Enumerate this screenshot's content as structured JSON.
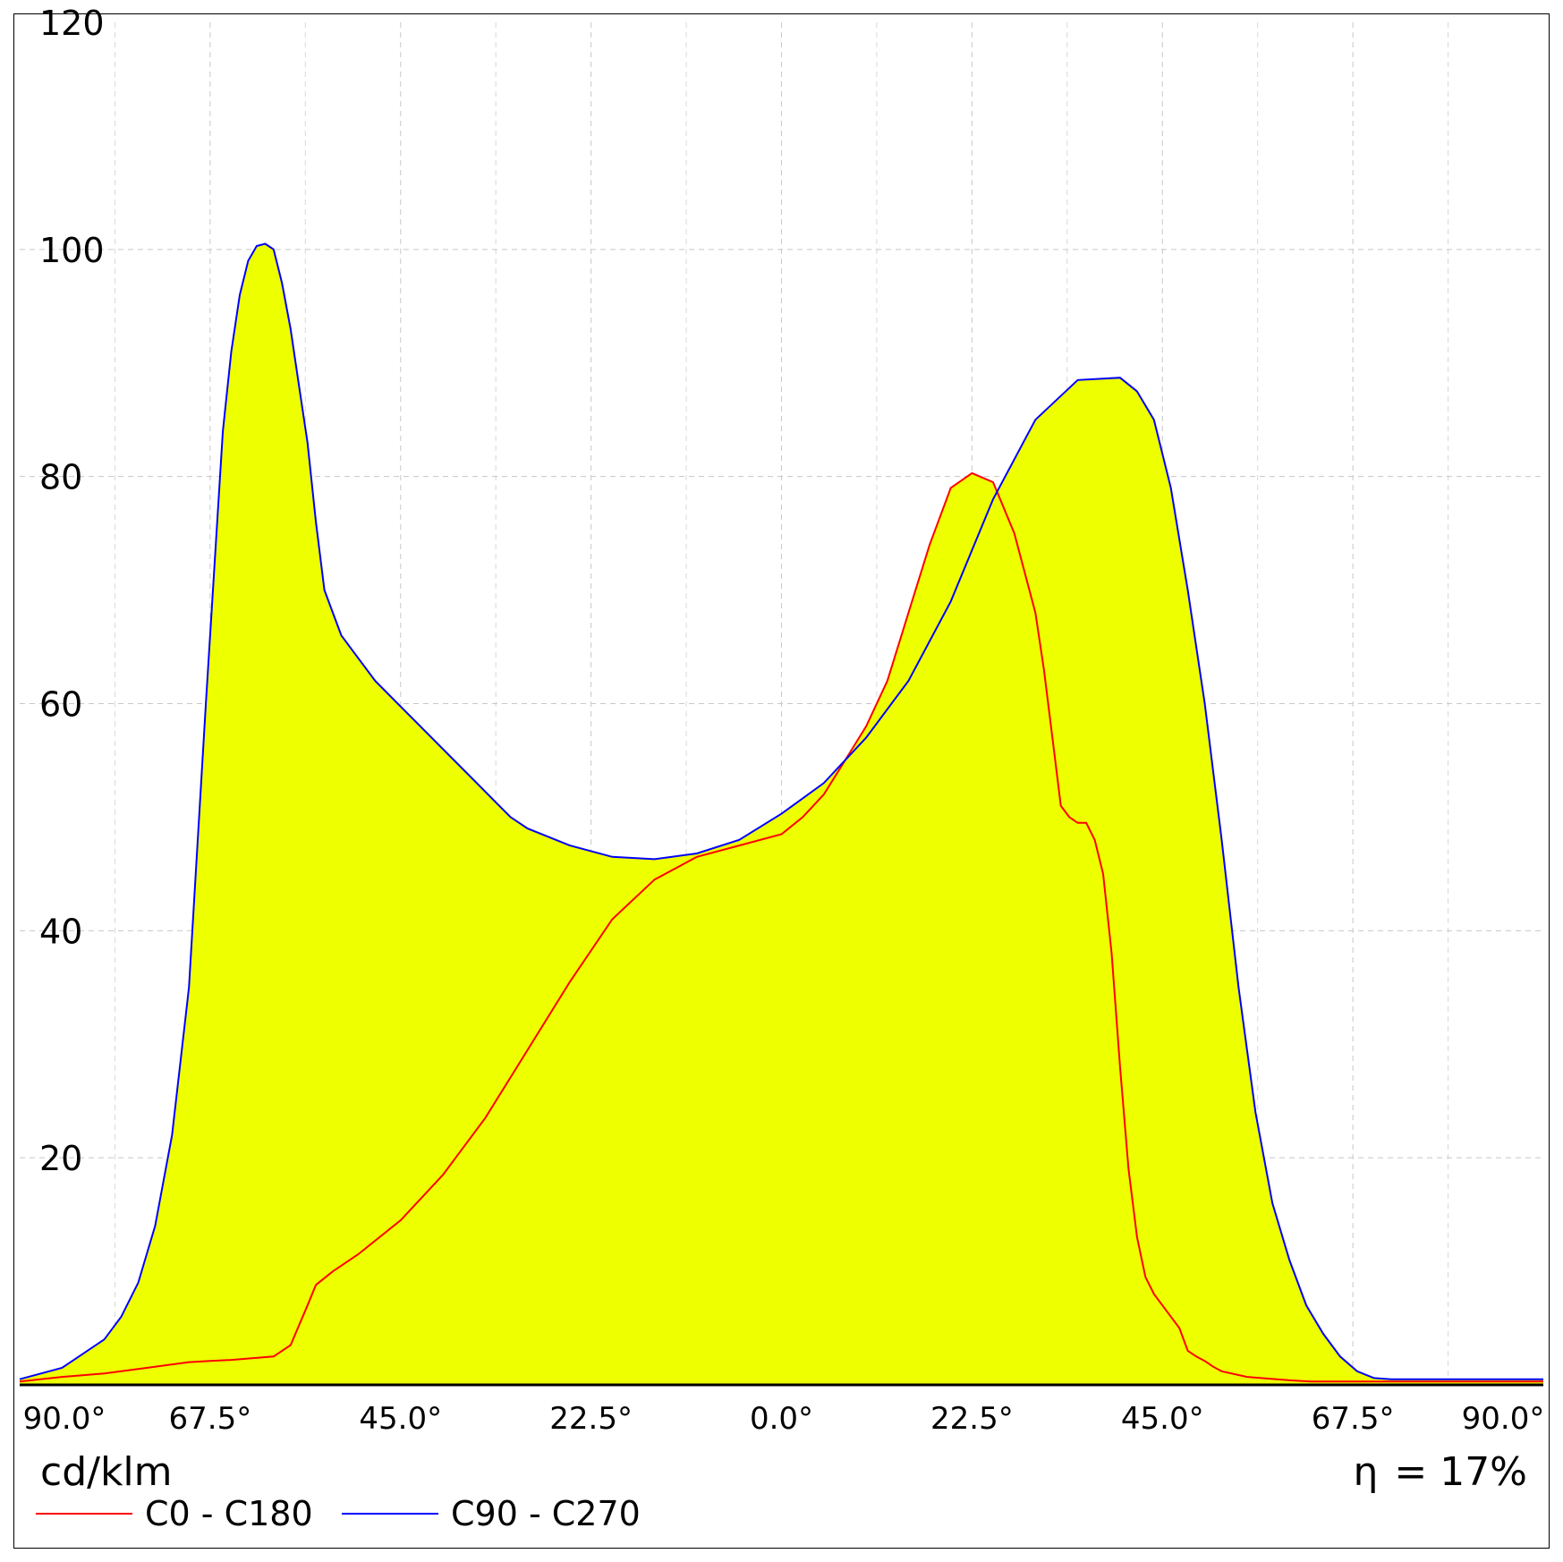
{
  "chart_data": {
    "type": "area",
    "x_tick_labels": [
      "90.0°",
      "67.5°",
      "45.0°",
      "22.5°",
      "0.0°",
      "22.5°",
      "45.0°",
      "67.5°",
      "90.0°"
    ],
    "y_tick_labels": [
      "20",
      "40",
      "60",
      "80",
      "100",
      "120"
    ],
    "xlim": [
      -90,
      90
    ],
    "ylim": [
      0,
      120
    ],
    "grid": true,
    "unit_label": "cd/klm",
    "efficiency_symbol": "η",
    "efficiency_value": "= 17%",
    "fill_color": "#eeff00",
    "series": [
      {
        "name": "C0 - C180",
        "color": "#ff0000",
        "x": [
          -90,
          -85,
          -80,
          -75,
          -70,
          -67.5,
          -65,
          -60,
          -58,
          -56,
          -55,
          -53,
          -50,
          -45,
          -40,
          -35,
          -30,
          -25,
          -20,
          -15,
          -10,
          -5,
          0,
          2.5,
          5,
          7.5,
          10,
          12.5,
          15,
          17.5,
          20,
          22.5,
          25,
          27.5,
          30,
          31,
          32,
          33,
          34,
          35,
          36,
          37,
          38,
          39,
          40,
          41,
          42,
          43,
          44,
          45,
          46,
          47,
          48,
          49,
          50,
          51,
          52,
          55,
          60,
          62.5,
          65,
          70,
          75,
          80,
          85,
          90
        ],
        "y": [
          0.3,
          0.7,
          1.0,
          1.5,
          2.0,
          2.1,
          2.2,
          2.5,
          3.5,
          7,
          8.8,
          10.0,
          11.5,
          14.5,
          18.5,
          23.5,
          29.5,
          35.5,
          41,
          44.5,
          46.5,
          47.5,
          48.5,
          50,
          52,
          55,
          58,
          62,
          68,
          74,
          79,
          80.3,
          79.5,
          75,
          68,
          63,
          57,
          51,
          50,
          49.5,
          49.5,
          48,
          45,
          38,
          28,
          19,
          13,
          9.5,
          8,
          7,
          6,
          5,
          3.0,
          2.5,
          2.1,
          1.6,
          1.2,
          0.7,
          0.4,
          0.3,
          0.3,
          0.3,
          0.3,
          0.3,
          0.3,
          0.3
        ],
        "x_mode": "gamma",
        "x_values": [
          -90,
          -85,
          -80,
          -75,
          -70,
          -67.5,
          -65,
          -60,
          -58,
          -56,
          -55,
          -53,
          -50,
          -45,
          -40,
          -35,
          -30,
          -25,
          -20,
          -15,
          -10,
          -5,
          0,
          2.5,
          5,
          7.5,
          10,
          12.5,
          15,
          17.5,
          20,
          22.5,
          25,
          27.5,
          30,
          31,
          32,
          33,
          34,
          35,
          36,
          37,
          38,
          39,
          40,
          41,
          42,
          43,
          44,
          45,
          46,
          47,
          48,
          49,
          50,
          51,
          52,
          55,
          60,
          62.5,
          65,
          70,
          75,
          80,
          85,
          90
        ]
      },
      {
        "name": "C90 - C270",
        "color": "#0000ff",
        "x": [
          -90,
          -85,
          -80,
          -78,
          -76,
          -74,
          -72,
          -70,
          -68,
          -67,
          -66,
          -65,
          -64,
          -63,
          -62,
          -61,
          -60,
          -59,
          -58,
          -57,
          -56,
          -55,
          -54,
          -52,
          -50,
          -48,
          -46,
          -44,
          -42,
          -40,
          -38,
          -36,
          -34,
          -32,
          -30,
          -25,
          -20,
          -15,
          -10,
          -5,
          0,
          5,
          10,
          15,
          20,
          25,
          30,
          35,
          40,
          42,
          44,
          46,
          48,
          50,
          52,
          54,
          56,
          58,
          60,
          62,
          64,
          66,
          68,
          70,
          72,
          75,
          78,
          80,
          82,
          85,
          90
        ],
        "y": [
          0.5,
          1.5,
          4,
          6,
          9,
          14,
          22,
          35,
          60,
          72,
          84,
          91,
          96,
          99,
          100.3,
          100.5,
          100,
          97,
          93,
          88,
          83,
          76,
          70,
          66,
          64,
          62,
          60.5,
          59,
          57.5,
          56,
          54.5,
          53,
          51.5,
          50,
          49,
          47.5,
          46.5,
          46.3,
          46.8,
          48,
          50.3,
          53,
          57,
          62,
          69,
          78,
          85,
          88.5,
          88.7,
          87.5,
          85,
          79,
          70,
          60,
          48,
          35,
          24,
          16,
          11,
          7,
          4.5,
          2.5,
          1.2,
          0.6,
          0.5,
          0.5,
          0.5,
          0.5,
          0.5,
          0.5,
          0.5
        ]
      }
    ]
  }
}
